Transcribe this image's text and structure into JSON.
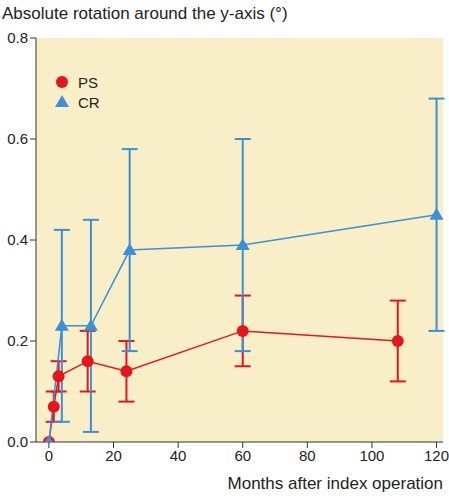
{
  "chart_data": {
    "type": "line",
    "y_label": "Absolute rotation around the y-axis (°)",
    "x_label": "Months after index operation",
    "xlim": [
      -4,
      122
    ],
    "xticks": [
      0,
      20,
      40,
      60,
      80,
      100,
      120
    ],
    "ylim": [
      0,
      0.8
    ],
    "yticks": [
      {
        "value": 0,
        "label": "0.0"
      },
      {
        "value": 0.2,
        "label": "0.2"
      },
      {
        "value": 0.4,
        "label": "0.4"
      },
      {
        "value": 0.6,
        "label": "0.6"
      },
      {
        "value": 0.8,
        "label": "0.8"
      }
    ],
    "grid": false,
    "legend": "upper left",
    "series": [
      {
        "name": "PS",
        "color": "#e3161b",
        "marker": "circle",
        "x": [
          0,
          1.5,
          3,
          12,
          24,
          60,
          108
        ],
        "values": [
          0,
          0.07,
          0.13,
          0.16,
          0.14,
          0.22,
          0.2
        ],
        "error_low": [
          null,
          0.04,
          0.1,
          0.1,
          0.08,
          0.15,
          0.12
        ],
        "error_high": [
          null,
          0.1,
          0.16,
          0.22,
          0.2,
          0.29,
          0.28
        ]
      },
      {
        "name": "CR",
        "color": "#3d8fd6",
        "marker": "triangle",
        "x": [
          0,
          4,
          13,
          25,
          60,
          120
        ],
        "values": [
          0,
          0.23,
          0.23,
          0.38,
          0.39,
          0.45
        ],
        "error_low": [
          null,
          0.04,
          0.02,
          0.18,
          0.18,
          0.22
        ],
        "error_high": [
          null,
          0.42,
          0.44,
          0.58,
          0.6,
          0.68
        ]
      }
    ]
  }
}
